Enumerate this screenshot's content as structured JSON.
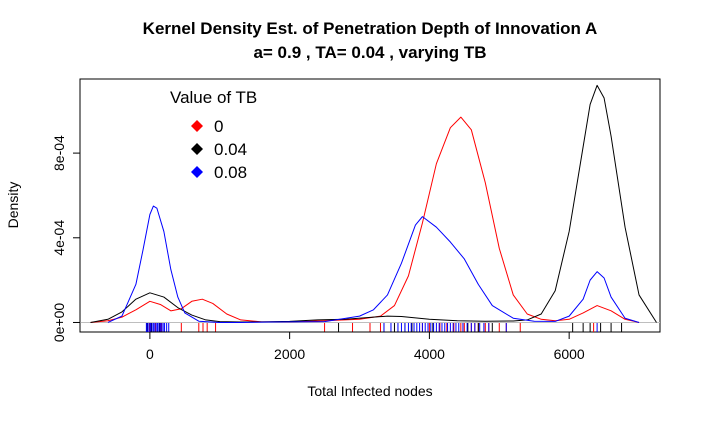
{
  "chart_data": {
    "type": "line",
    "title": "Kernel Density Est. of Penetration Depth of Innovation A",
    "subtitle": "a= 0.9 , TA= 0.04 , varying TB",
    "xlabel": "Total Infected nodes",
    "ylabel": "Density",
    "xlim": [
      -1000,
      7300
    ],
    "ylim": [
      -4.5e-05,
      0.00115
    ],
    "x_ticks": [
      0,
      2000,
      4000,
      6000
    ],
    "x_tick_labels": [
      "0",
      "2000",
      "4000",
      "6000"
    ],
    "y_ticks": [
      0,
      0.0004,
      0.0008
    ],
    "y_tick_labels": [
      "0e+00",
      "4e-04",
      "8e-04"
    ],
    "baseline": 0,
    "grid": false,
    "legend": {
      "title": "Value of TB",
      "position": "top-left",
      "entries": [
        {
          "label": "0",
          "color": "#ff0000"
        },
        {
          "label": "0.04",
          "color": "#000000"
        },
        {
          "label": "0.08",
          "color": "#0000ff"
        }
      ]
    },
    "series": [
      {
        "name": "0",
        "color": "#ff0000",
        "x": [
          -850,
          -600,
          -400,
          -200,
          0,
          150,
          300,
          450,
          600,
          750,
          900,
          1100,
          1300,
          1600,
          2000,
          2500,
          3000,
          3300,
          3500,
          3700,
          3900,
          4100,
          4300,
          4450,
          4600,
          4800,
          5000,
          5200,
          5400,
          5600,
          5800,
          6000,
          6200,
          6400,
          6600,
          6800,
          7000
        ],
        "y": [
          0.0,
          8e-06,
          2.5e-05,
          6e-05,
          0.0001,
          8.5e-05,
          5.5e-05,
          6.5e-05,
          0.0001,
          0.00011,
          9e-05,
          4e-05,
          1.2e-05,
          3e-06,
          3e-06,
          8e-06,
          1.5e-05,
          3e-05,
          8e-05,
          0.00022,
          0.00047,
          0.00075,
          0.00092,
          0.00097,
          0.00091,
          0.00066,
          0.00035,
          0.00013,
          4e-05,
          1.5e-05,
          8e-06,
          1.5e-05,
          4.5e-05,
          8e-05,
          5.5e-05,
          1.5e-05,
          0.0
        ]
      },
      {
        "name": "0.04",
        "color": "#000000",
        "x": [
          -850,
          -600,
          -400,
          -200,
          0,
          200,
          400,
          600,
          800,
          1000,
          1300,
          1600,
          2000,
          2400,
          2800,
          3200,
          3400,
          3600,
          3800,
          4000,
          4400,
          4800,
          5200,
          5400,
          5600,
          5800,
          6000,
          6200,
          6300,
          6400,
          6500,
          6600,
          6800,
          7000,
          7250
        ],
        "y": [
          0.0,
          1.5e-05,
          5e-05,
          0.00011,
          0.00014,
          0.00012,
          7e-05,
          3.5e-05,
          1.2e-05,
          4e-06,
          2e-06,
          3e-06,
          5e-06,
          1.2e-05,
          1.5e-05,
          2.5e-05,
          3e-05,
          2.8e-05,
          2.2e-05,
          1.5e-05,
          8e-06,
          6e-06,
          7e-06,
          1.2e-05,
          4e-05,
          0.00015,
          0.00043,
          0.00083,
          0.00103,
          0.00112,
          0.00106,
          0.00088,
          0.00045,
          0.00013,
          0.0
        ]
      },
      {
        "name": "0.08",
        "color": "#0000ff",
        "x": [
          -600,
          -400,
          -200,
          -100,
          0,
          50,
          100,
          200,
          300,
          400,
          500,
          700,
          1000,
          1300,
          1700,
          2000,
          2500,
          3000,
          3200,
          3400,
          3600,
          3800,
          3900,
          4100,
          4300,
          4500,
          4700,
          4900,
          5200,
          5500,
          5800,
          6000,
          6200,
          6300,
          6400,
          6500,
          6600,
          6800,
          7000
        ],
        "y": [
          0.0,
          3e-05,
          0.00018,
          0.00034,
          0.00051,
          0.00055,
          0.00054,
          0.00043,
          0.00025,
          0.00012,
          4.5e-05,
          6e-06,
          0.0,
          0.0,
          2e-06,
          3e-06,
          4e-06,
          3e-05,
          6e-05,
          0.00013,
          0.00028,
          0.00046,
          0.0005,
          0.00045,
          0.00038,
          0.0003,
          0.00018,
          8e-05,
          2e-05,
          6e-06,
          5e-06,
          3e-05,
          0.00011,
          0.0002,
          0.00024,
          0.00021,
          0.00012,
          2e-05,
          0.0
        ]
      }
    ],
    "rug": [
      {
        "name": "0",
        "color": "#ff0000",
        "x": [
          0,
          80,
          160,
          450,
          700,
          760,
          820,
          940,
          2500,
          2900,
          3150,
          3300,
          3900,
          4000,
          4150,
          4250,
          4350,
          4450,
          4500,
          4600,
          4650,
          4700,
          4800,
          4850,
          5000,
          5100,
          5300,
          6350
        ]
      },
      {
        "name": "0.04",
        "color": "#000000",
        "x": [
          -40,
          20,
          140,
          2700,
          3350,
          3500,
          3650,
          3750,
          4050,
          4550,
          4700,
          4900,
          6050,
          6200,
          6300,
          6450,
          6600,
          6750
        ]
      },
      {
        "name": "0.08",
        "color": "#0000ff",
        "x": [
          -50,
          -30,
          -10,
          10,
          30,
          50,
          70,
          90,
          110,
          130,
          150,
          170,
          190,
          210,
          240,
          270,
          3350,
          3450,
          3550,
          3600,
          3650,
          3700,
          3740,
          3780,
          3820,
          3860,
          3900,
          3940,
          3980,
          4020,
          4060,
          4100,
          4140,
          4180,
          4220,
          4260,
          4300,
          4340,
          4380,
          4420,
          4480,
          4540,
          4600,
          4650,
          4720,
          4780,
          4850,
          5100,
          6400
        ]
      }
    ]
  }
}
